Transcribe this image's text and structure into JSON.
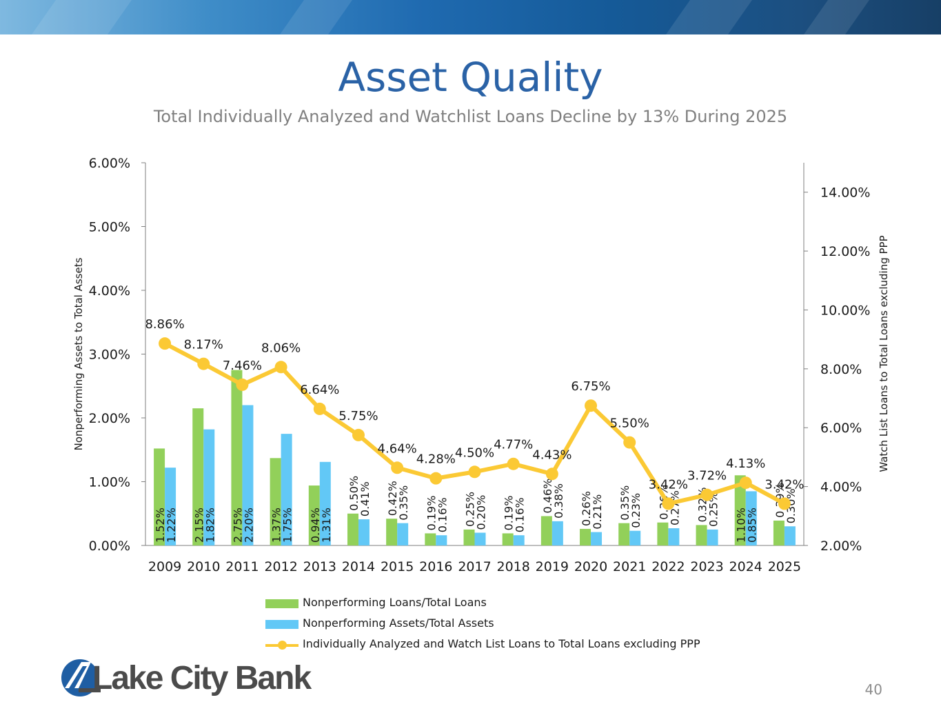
{
  "slide": {
    "title": "Asset Quality",
    "subtitle": "Total Individually Analyzed and Watchlist Loans Decline by 13% During 2025",
    "page_number": "40",
    "logo_text": "Lake City Bank"
  },
  "colors": {
    "title": "#2a62a6",
    "npl": "#92d05a",
    "npa": "#62c8f6",
    "watch": "#fbc934",
    "axis": "#7f7f7f"
  },
  "chart_data": {
    "type": "bar+line",
    "categories": [
      "2009",
      "2010",
      "2011",
      "2012",
      "2013",
      "2014",
      "2015",
      "2016",
      "2017",
      "2018",
      "2019",
      "2020",
      "2021",
      "2022",
      "2023",
      "2024",
      "2025"
    ],
    "series": [
      {
        "name": "Nonperforming Loans/Total Loans",
        "type": "bar",
        "axis": "left",
        "values": [
          1.52,
          2.15,
          2.75,
          1.37,
          0.94,
          0.5,
          0.42,
          0.19,
          0.25,
          0.19,
          0.46,
          0.26,
          0.35,
          0.36,
          0.32,
          1.1,
          0.39
        ],
        "labels": [
          "1.52%",
          "2.15%",
          "2.75%",
          "1.37%",
          "0.94%",
          "0.50%",
          "0.42%",
          "0.19%",
          "0.25%",
          "0.19%",
          "0.46%",
          "0.26%",
          "0.35%",
          "0.36%",
          "0.32%",
          "1.10%",
          "0.39%"
        ]
      },
      {
        "name": "Nonperforming Assets/Total Assets",
        "type": "bar",
        "axis": "left",
        "values": [
          1.22,
          1.82,
          2.2,
          1.75,
          1.31,
          0.41,
          0.35,
          0.16,
          0.2,
          0.16,
          0.38,
          0.21,
          0.23,
          0.27,
          0.25,
          0.85,
          0.3
        ],
        "labels": [
          "1.22%",
          "1.82%",
          "2.20%",
          "1.75%",
          "1.31%",
          "0.41%",
          "0.35%",
          "0.16%",
          "0.20%",
          "0.16%",
          "0.38%",
          "0.21%",
          "0.23%",
          "0.27%",
          "0.25%",
          "0.85%",
          "0.30%"
        ]
      },
      {
        "name": "Individually Analyzed and Watch List Loans to Total Loans excluding PPP",
        "type": "line",
        "axis": "right",
        "values": [
          8.86,
          8.17,
          7.46,
          8.06,
          6.64,
          5.75,
          4.64,
          4.28,
          4.5,
          4.77,
          4.43,
          6.75,
          5.5,
          3.42,
          3.72,
          4.13,
          3.42
        ],
        "labels": [
          "8.86%",
          "8.17%",
          "7.46%",
          "8.06%",
          "6.64%",
          "5.75%",
          "4.64%",
          "4.28%",
          "4.50%",
          "4.77%",
          "4.43%",
          "6.75%",
          "5.50%",
          "3.42%",
          "3.72%",
          "4.13%",
          "3.42%"
        ]
      }
    ],
    "y_left": {
      "label": "Nonperforming Assets to Total Assets",
      "min": 0,
      "max": 6,
      "ticks": [
        0,
        1,
        2,
        3,
        4,
        5,
        6
      ],
      "tick_labels": [
        "0.00%",
        "1.00%",
        "2.00%",
        "3.00%",
        "4.00%",
        "5.00%",
        "6.00%"
      ]
    },
    "y_right": {
      "label": "Watch List Loans to Total Loans excluding PPP",
      "min": 2,
      "max": 15,
      "ticks": [
        2,
        4,
        6,
        8,
        10,
        12,
        14
      ],
      "tick_labels": [
        "2.00%",
        "4.00%",
        "6.00%",
        "8.00%",
        "10.00%",
        "12.00%",
        "14.00%"
      ]
    },
    "legend": [
      "Nonperforming Loans/Total Loans",
      "Nonperforming Assets/Total Assets",
      "Individually Analyzed and Watch List Loans to Total Loans excluding PPP"
    ],
    "legend_position": "bottom"
  }
}
